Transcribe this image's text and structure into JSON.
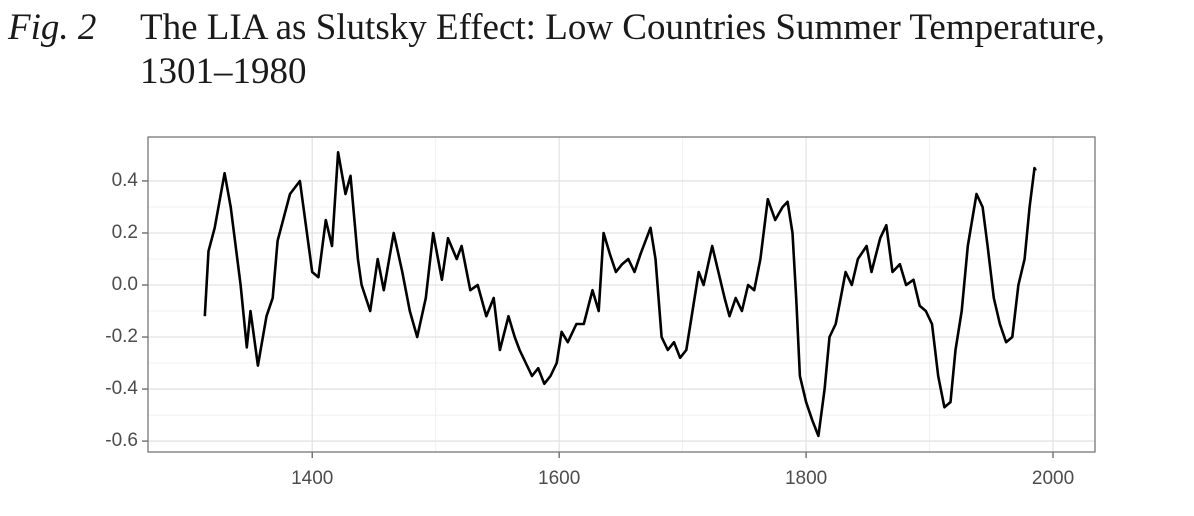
{
  "chart_data": {
    "type": "line",
    "figure_label": "Fig. 2",
    "title": "The LIA as Slutsky Effect: Low Countries Summer Temperature, 1301–1980",
    "color": "#000000",
    "x": [
      1313,
      1316,
      1321,
      1329,
      1334,
      1342,
      1347,
      1350,
      1356,
      1363,
      1368,
      1372,
      1382,
      1390,
      1400,
      1405,
      1411,
      1416,
      1421,
      1427,
      1431,
      1437,
      1440,
      1447,
      1453,
      1458,
      1466,
      1473,
      1479,
      1485,
      1492,
      1498,
      1505,
      1510,
      1517,
      1521,
      1528,
      1534,
      1541,
      1547,
      1552,
      1559,
      1564,
      1568,
      1573,
      1578,
      1583,
      1588,
      1593,
      1598,
      1602,
      1607,
      1614,
      1620,
      1627,
      1632,
      1636,
      1641,
      1646,
      1651,
      1656,
      1661,
      1666,
      1674,
      1678,
      1683,
      1688,
      1693,
      1698,
      1703,
      1708,
      1713,
      1717,
      1724,
      1729,
      1734,
      1738,
      1743,
      1748,
      1753,
      1758,
      1763,
      1769,
      1775,
      1781,
      1785,
      1789,
      1792,
      1795,
      1800,
      1805,
      1810,
      1815,
      1819,
      1824,
      1828,
      1832,
      1837,
      1842,
      1849,
      1853,
      1860,
      1865,
      1870,
      1876,
      1881,
      1887,
      1892,
      1897,
      1902,
      1907,
      1912,
      1917,
      1921,
      1926,
      1931,
      1938,
      1943,
      1947,
      1952,
      1957,
      1962,
      1967,
      1972,
      1977,
      1981,
      1985,
      1986
    ],
    "values": [
      -0.12,
      0.13,
      0.22,
      0.43,
      0.3,
      0.0,
      -0.24,
      -0.1,
      -0.31,
      -0.12,
      -0.05,
      0.17,
      0.35,
      0.4,
      0.05,
      0.03,
      0.25,
      0.15,
      0.51,
      0.35,
      0.42,
      0.1,
      0.0,
      -0.1,
      0.1,
      -0.02,
      0.2,
      0.05,
      -0.1,
      -0.2,
      -0.05,
      0.2,
      0.02,
      0.18,
      0.1,
      0.15,
      -0.02,
      0.0,
      -0.12,
      -0.05,
      -0.25,
      -0.12,
      -0.2,
      -0.25,
      -0.3,
      -0.35,
      -0.32,
      -0.38,
      -0.35,
      -0.3,
      -0.18,
      -0.22,
      -0.15,
      -0.15,
      -0.02,
      -0.1,
      0.2,
      0.12,
      0.05,
      0.08,
      0.1,
      0.05,
      0.12,
      0.22,
      0.1,
      -0.2,
      -0.25,
      -0.22,
      -0.28,
      -0.25,
      -0.1,
      0.05,
      0.0,
      0.15,
      0.05,
      -0.05,
      -0.12,
      -0.05,
      -0.1,
      0.0,
      -0.02,
      0.1,
      0.33,
      0.25,
      0.3,
      0.32,
      0.2,
      -0.05,
      -0.35,
      -0.45,
      -0.52,
      -0.58,
      -0.4,
      -0.2,
      -0.15,
      -0.05,
      0.05,
      0.0,
      0.1,
      0.15,
      0.05,
      0.18,
      0.23,
      0.05,
      0.08,
      0.0,
      0.02,
      -0.08,
      -0.1,
      -0.15,
      -0.35,
      -0.47,
      -0.45,
      -0.25,
      -0.1,
      0.15,
      0.35,
      0.3,
      0.15,
      -0.05,
      -0.15,
      -0.22,
      -0.2,
      0.0,
      0.1,
      0.3,
      0.45,
      0.44
    ],
    "xlim": [
      1267,
      2034
    ],
    "ylim": [
      -0.642,
      0.569
    ],
    "xticks": [
      1400,
      1600,
      1800,
      2000
    ],
    "yticks": [
      0.4,
      0.2,
      {
        "value": 0,
        "label": "0.0"
      },
      -0.2,
      -0.4,
      -0.6
    ],
    "grid": true
  }
}
